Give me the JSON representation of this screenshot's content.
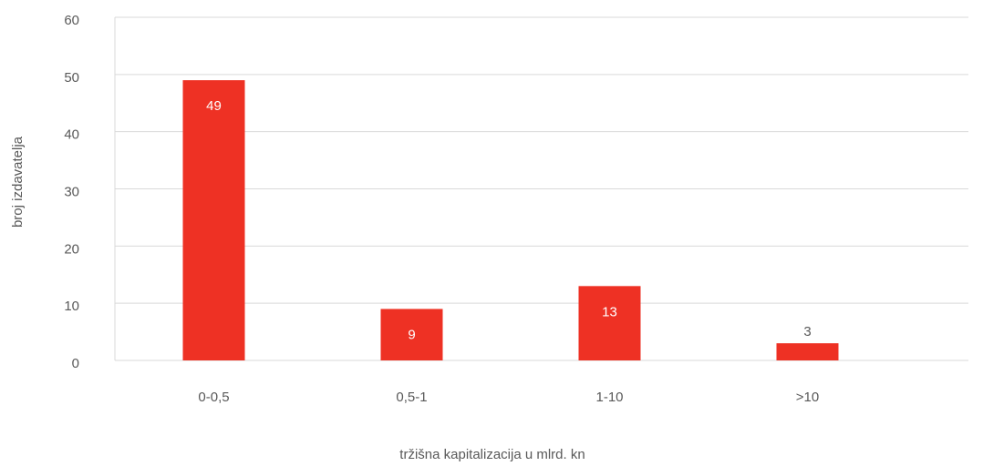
{
  "chart_data": {
    "type": "bar",
    "x_label": "tržišna kapitalizacija u mlrd. kn",
    "y_label": "broj izdavatelja",
    "categories": [
      "0-0,5",
      "0,5-1",
      "1-10",
      ">10"
    ],
    "values": [
      49,
      9,
      13,
      3
    ],
    "color": "#ee3124",
    "ylim": [
      0,
      60
    ],
    "yticks": [
      0,
      10,
      20,
      30,
      40,
      50,
      60
    ],
    "grid": true
  }
}
